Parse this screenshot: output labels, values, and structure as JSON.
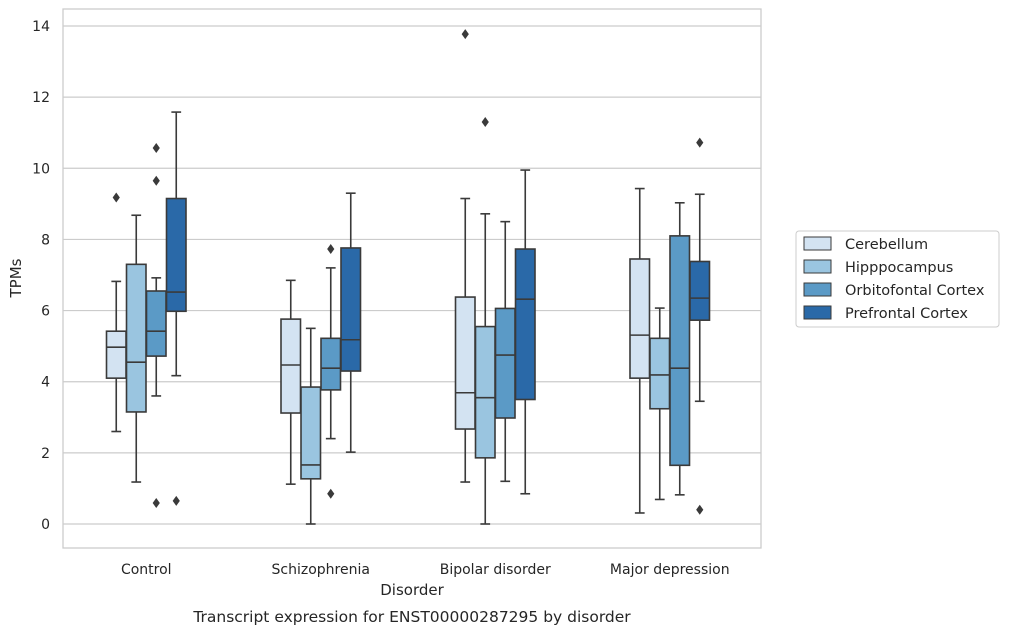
{
  "chart_data": {
    "type": "box",
    "xlabel": "Disorder",
    "ylabel": "TPMs",
    "caption": "Transcript expression for ENST00000287295 by disorder",
    "ylim": [
      -0.65,
      14.5
    ],
    "yticks": [
      "0",
      "2",
      "4",
      "6",
      "8",
      "10",
      "12",
      "14"
    ],
    "grid": true,
    "legend_position": "right",
    "categories": [
      "Control",
      "Schizophrenia",
      "Bipolar disorder",
      "Major depression"
    ],
    "series": [
      {
        "name": "Cerebellum",
        "color": "#d3e3f2",
        "boxes": [
          {
            "q1": 4.1,
            "median": 4.97,
            "q3": 5.42,
            "whisker_low": 2.6,
            "whisker_high": 6.82,
            "outliers": [
              9.18
            ]
          },
          {
            "q1": 3.12,
            "median": 4.47,
            "q3": 5.76,
            "whisker_low": 1.12,
            "whisker_high": 6.85,
            "outliers": []
          },
          {
            "q1": 2.67,
            "median": 3.69,
            "q3": 6.38,
            "whisker_low": 1.18,
            "whisker_high": 9.15,
            "outliers": [
              13.77
            ]
          },
          {
            "q1": 4.1,
            "median": 5.31,
            "q3": 7.45,
            "whisker_low": 0.31,
            "whisker_high": 9.43,
            "outliers": []
          }
        ]
      },
      {
        "name": "Hipppocampus",
        "color": "#9ac5e0",
        "boxes": [
          {
            "q1": 3.15,
            "median": 4.55,
            "q3": 7.3,
            "whisker_low": 1.18,
            "whisker_high": 8.68,
            "outliers": []
          },
          {
            "q1": 1.27,
            "median": 1.66,
            "q3": 3.85,
            "whisker_low": 0.0,
            "whisker_high": 5.5,
            "outliers": []
          },
          {
            "q1": 1.86,
            "median": 3.55,
            "q3": 5.55,
            "whisker_low": 0.0,
            "whisker_high": 8.72,
            "outliers": [
              11.3
            ]
          },
          {
            "q1": 3.24,
            "median": 4.19,
            "q3": 5.22,
            "whisker_low": 0.69,
            "whisker_high": 6.07,
            "outliers": []
          }
        ]
      },
      {
        "name": "Orbitofontal Cortex",
        "color": "#5b9ac6",
        "boxes": [
          {
            "q1": 4.72,
            "median": 5.42,
            "q3": 6.55,
            "whisker_low": 3.6,
            "whisker_high": 6.92,
            "outliers": [
              10.57,
              9.65,
              0.59
            ]
          },
          {
            "q1": 3.77,
            "median": 4.38,
            "q3": 5.22,
            "whisker_low": 2.4,
            "whisker_high": 7.2,
            "outliers": [
              7.73,
              0.85
            ]
          },
          {
            "q1": 2.98,
            "median": 4.75,
            "q3": 6.06,
            "whisker_low": 1.2,
            "whisker_high": 8.5,
            "outliers": []
          },
          {
            "q1": 1.65,
            "median": 4.38,
            "q3": 8.1,
            "whisker_low": 0.82,
            "whisker_high": 9.03,
            "outliers": []
          }
        ]
      },
      {
        "name": "Prefrontal Cortex",
        "color": "#2a69a8",
        "boxes": [
          {
            "q1": 5.98,
            "median": 6.52,
            "q3": 9.15,
            "whisker_low": 4.17,
            "whisker_high": 11.58,
            "outliers": [
              0.65
            ]
          },
          {
            "q1": 4.3,
            "median": 5.18,
            "q3": 7.76,
            "whisker_low": 2.02,
            "whisker_high": 9.3,
            "outliers": []
          },
          {
            "q1": 3.5,
            "median": 6.32,
            "q3": 7.73,
            "whisker_low": 0.85,
            "whisker_high": 9.95,
            "outliers": []
          },
          {
            "q1": 5.73,
            "median": 6.35,
            "q3": 7.38,
            "whisker_low": 3.45,
            "whisker_high": 9.27,
            "outliers": [
              10.72,
              0.4
            ]
          }
        ]
      }
    ]
  }
}
